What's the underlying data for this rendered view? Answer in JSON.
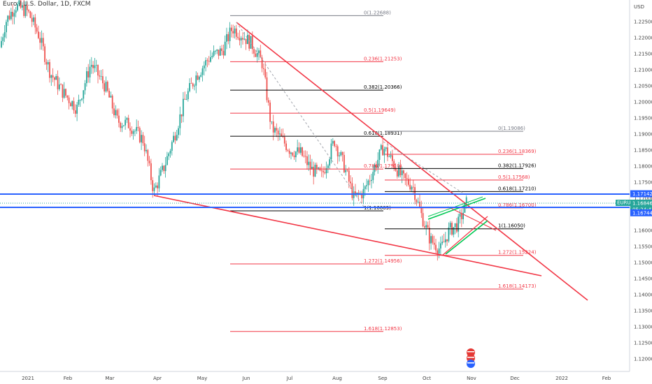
{
  "header": {
    "title": "Euro / U.S. Dollar, 1D, FXCM"
  },
  "price_axis": {
    "currency": "USD",
    "ticks": [
      "1.22500",
      "1.22000",
      "1.21500",
      "1.21000",
      "1.20500",
      "1.20000",
      "1.19500",
      "1.19000",
      "1.18500",
      "1.18000",
      "1.17500",
      "1.17000",
      "1.16500",
      "1.16000",
      "1.15500",
      "1.15000",
      "1.14500",
      "1.14000",
      "1.13500",
      "1.13000",
      "1.12500",
      "1.12000"
    ],
    "tags": [
      {
        "name": "level-tag-upper",
        "text": "1.17142",
        "color": "#2962ff"
      },
      {
        "name": "symbol-tag",
        "text": "EURUSD",
        "color": "#26a69a"
      },
      {
        "name": "last-price-tag",
        "text": "1.16846",
        "color": "#26a69a"
      },
      {
        "name": "countdown-tag",
        "text": "05:24:42",
        "color": "#26a69a"
      },
      {
        "name": "level-tag-lower",
        "text": "1.16744",
        "color": "#2962ff"
      }
    ]
  },
  "time_axis": {
    "ticks": [
      "2021",
      "Feb",
      "Mar",
      "Apr",
      "May",
      "Jun",
      "Jul",
      "Aug",
      "Sep",
      "Oct",
      "Nov",
      "Dec",
      "2022",
      "Feb"
    ]
  },
  "chart_data": {
    "type": "candlestick",
    "symbol": "EURUSD",
    "last_price": 1.16846,
    "y_range": [
      1.117,
      1.227
    ],
    "horizontal_levels": [
      1.17142,
      1.16744
    ],
    "fib_set_1": [
      {
        "label": "0(1.22688)",
        "ratio": "0",
        "price": 1.22688,
        "color": "#787b86"
      },
      {
        "label": "0.236(1.21253)",
        "ratio": "0.236",
        "price": 1.21253,
        "color": "#f23645"
      },
      {
        "label": "0.382(1.20366)",
        "ratio": "0.382",
        "price": 1.20366,
        "color": "#000000"
      },
      {
        "label": "0.5(1.19649)",
        "ratio": "0.5",
        "price": 1.19649,
        "color": "#f23645"
      },
      {
        "label": "0.618(1.18931)",
        "ratio": "0.618",
        "price": 1.18931,
        "color": "#000000"
      },
      {
        "label": "0.786(1.17910)",
        "ratio": "0.786",
        "price": 1.1791,
        "color": "#f23645"
      },
      {
        "label": "1(1.16609)",
        "ratio": "1",
        "price": 1.16609,
        "color": "#000000"
      },
      {
        "label": "1.272(1.14956)",
        "ratio": "1.272",
        "price": 1.14956,
        "color": "#f23645"
      },
      {
        "label": "1.618(1.12853)",
        "ratio": "1.618",
        "price": 1.12853,
        "color": "#f23645"
      }
    ],
    "fib_set_2": [
      {
        "label": "0(1.19086)",
        "ratio": "0",
        "price": 1.19086,
        "color": "#787b86"
      },
      {
        "label": "0.236(1.18369)",
        "ratio": "0.236",
        "price": 1.18369,
        "color": "#f23645"
      },
      {
        "label": "0.382(1.17926)",
        "ratio": "0.382",
        "price": 1.17926,
        "color": "#000000"
      },
      {
        "label": "0.5(1.17568)",
        "ratio": "0.5",
        "price": 1.17568,
        "color": "#f23645"
      },
      {
        "label": "0.618(1.17210)",
        "ratio": "0.618",
        "price": 1.1721,
        "color": "#000000"
      },
      {
        "label": "0.786(1.16700)",
        "ratio": "0.786",
        "price": 1.167,
        "color": "#f23645"
      },
      {
        "label": "1(1.16050)",
        "ratio": "1",
        "price": 1.1605,
        "color": "#000000"
      },
      {
        "label": "1.272(1.15224)",
        "ratio": "1.272",
        "price": 1.15224,
        "color": "#f23645"
      },
      {
        "label": "1.618(1.14173)",
        "ratio": "1.618",
        "price": 1.14173,
        "color": "#f23645"
      }
    ],
    "candle_colors": {
      "up": "#26a69a",
      "down": "#ef5350"
    },
    "line_colors": {
      "trend": "#f23645",
      "channel": "#00c853",
      "level": "#2962ff"
    }
  }
}
